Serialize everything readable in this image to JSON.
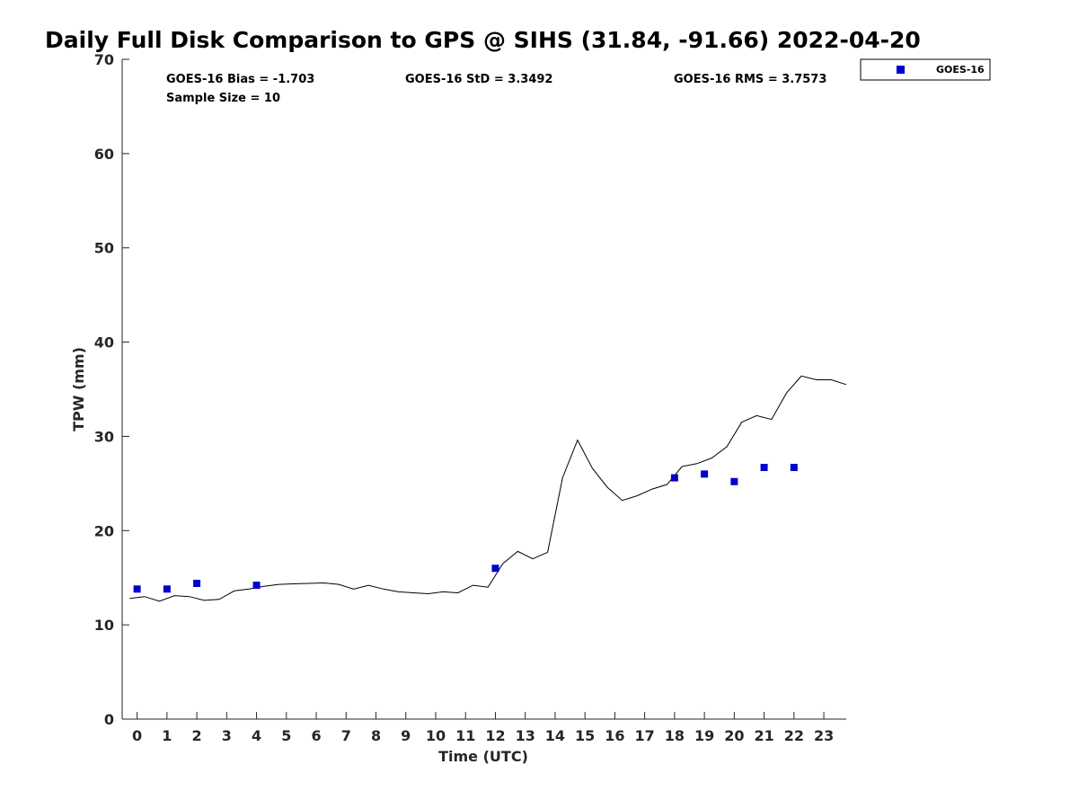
{
  "chart_data": {
    "type": "scatter",
    "title": "Daily Full Disk Comparison to GPS @ SIHS (31.84, -91.66) 2022-04-20",
    "xlabel": "Time (UTC)",
    "ylabel": "TPW (mm)",
    "xlim": [
      -0.5,
      23.75
    ],
    "ylim": [
      0,
      70
    ],
    "x_ticks": [
      0,
      1,
      2,
      3,
      4,
      5,
      6,
      7,
      8,
      9,
      10,
      11,
      12,
      13,
      14,
      15,
      16,
      17,
      18,
      19,
      20,
      21,
      22,
      23
    ],
    "y_ticks": [
      0,
      10,
      20,
      30,
      40,
      50,
      60,
      70
    ],
    "grid": false,
    "legend_position": "outside-top-right",
    "stats": {
      "bias": "GOES-16 Bias = -1.703",
      "std": "GOES-16 StD = 3.3492",
      "rms": "GOES-16 RMS = 3.7573",
      "sample_size": "Sample Size = 10"
    },
    "series": [
      {
        "name": "GOES-16",
        "style": "markers",
        "color": "#0000cc",
        "x": [
          0,
          1,
          2,
          4,
          12,
          18,
          19,
          20,
          21,
          22
        ],
        "y": [
          13.8,
          13.8,
          14.4,
          14.2,
          16.0,
          25.6,
          26.0,
          25.2,
          26.7,
          26.7
        ]
      },
      {
        "style": "line",
        "color": "#000000",
        "x": [
          -0.25,
          0.25,
          0.75,
          1.25,
          1.75,
          2.25,
          2.75,
          3.25,
          3.75,
          4.25,
          4.75,
          5.25,
          5.75,
          6.25,
          6.75,
          7.25,
          7.75,
          8.25,
          8.75,
          9.25,
          9.75,
          10.25,
          10.75,
          11.25,
          11.75,
          12.25,
          12.75,
          13.25,
          13.75,
          14.25,
          14.75,
          15.25,
          15.75,
          16.25,
          16.75,
          17.25,
          17.75,
          18.25,
          18.75,
          19.25,
          19.75,
          20.25,
          20.75,
          21.25,
          21.75,
          22.25,
          22.75,
          23.25,
          23.75
        ],
        "y": [
          12.8,
          13.0,
          12.5,
          13.1,
          13.0,
          12.6,
          12.7,
          13.6,
          13.8,
          14.1,
          14.3,
          14.35,
          14.4,
          14.45,
          14.3,
          13.8,
          14.2,
          13.8,
          13.5,
          13.4,
          13.3,
          13.5,
          13.4,
          14.2,
          14.0,
          16.5,
          17.8,
          17.0,
          17.7,
          25.6,
          29.6,
          26.6,
          24.6,
          23.2,
          23.7,
          24.4,
          24.9,
          26.8,
          27.1,
          27.7,
          28.9,
          31.5,
          32.2,
          31.8,
          34.6,
          36.4,
          36.0,
          36.0,
          35.5
        ]
      }
    ]
  }
}
